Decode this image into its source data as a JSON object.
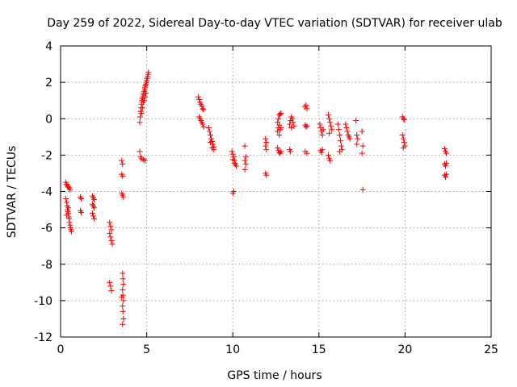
{
  "chart_data": {
    "type": "scatter",
    "title": "Day 259 of 2022, Sidereal Day-to-day VTEC variation (SDTVAR) for receiver ulab",
    "xlabel": "GPS time / hours",
    "ylabel": "SDTVAR / TECUs",
    "xlim": [
      0,
      25
    ],
    "ylim": [
      -12,
      4
    ],
    "xticks": [
      0,
      5,
      10,
      15,
      20,
      25
    ],
    "yticks": [
      -12,
      -10,
      -8,
      -6,
      -4,
      -2,
      0,
      2,
      4
    ],
    "grid": true,
    "marker": "+",
    "marker_color": "#ff0000",
    "series": [
      {
        "name": "SDTVAR",
        "points": [
          [
            0.3,
            -3.5
          ],
          [
            0.35,
            -3.6
          ],
          [
            0.4,
            -3.7
          ],
          [
            0.45,
            -3.75
          ],
          [
            0.5,
            -3.8
          ],
          [
            0.55,
            -3.9
          ],
          [
            0.3,
            -4.4
          ],
          [
            0.35,
            -4.6
          ],
          [
            0.38,
            -4.8
          ],
          [
            0.4,
            -5.0
          ],
          [
            0.42,
            -5.1
          ],
          [
            0.45,
            -5.2
          ],
          [
            0.48,
            -5.4
          ],
          [
            0.5,
            -5.5
          ],
          [
            0.52,
            -5.7
          ],
          [
            0.55,
            -5.85
          ],
          [
            0.58,
            -6.0
          ],
          [
            0.6,
            -6.1
          ],
          [
            0.63,
            -6.2
          ],
          [
            0.35,
            -5.3
          ],
          [
            0.45,
            -4.9
          ],
          [
            1.15,
            -4.3
          ],
          [
            1.2,
            -4.4
          ],
          [
            1.15,
            -5.05
          ],
          [
            1.2,
            -5.15
          ],
          [
            1.85,
            -4.25
          ],
          [
            1.9,
            -4.35
          ],
          [
            1.95,
            -4.45
          ],
          [
            1.85,
            -4.7
          ],
          [
            1.9,
            -4.8
          ],
          [
            1.95,
            -4.9
          ],
          [
            1.85,
            -5.2
          ],
          [
            1.9,
            -5.35
          ],
          [
            1.95,
            -5.5
          ],
          [
            2.85,
            -5.7
          ],
          [
            2.9,
            -5.9
          ],
          [
            2.95,
            -6.1
          ],
          [
            2.85,
            -6.3
          ],
          [
            2.9,
            -6.5
          ],
          [
            2.95,
            -6.7
          ],
          [
            3.0,
            -6.9
          ],
          [
            2.85,
            -9.0
          ],
          [
            2.9,
            -9.2
          ],
          [
            2.95,
            -9.45
          ],
          [
            3.55,
            -2.3
          ],
          [
            3.6,
            -2.5
          ],
          [
            3.55,
            -3.05
          ],
          [
            3.6,
            -3.15
          ],
          [
            3.55,
            -4.1
          ],
          [
            3.6,
            -4.2
          ],
          [
            3.65,
            -4.3
          ],
          [
            3.6,
            -8.5
          ],
          [
            3.62,
            -8.8
          ],
          [
            3.65,
            -9.1
          ],
          [
            3.6,
            -9.4
          ],
          [
            3.62,
            -9.7
          ],
          [
            3.65,
            -10.0
          ],
          [
            3.6,
            -10.3
          ],
          [
            3.62,
            -10.6
          ],
          [
            3.65,
            -11.0
          ],
          [
            3.6,
            -11.3
          ],
          [
            3.55,
            -9.8
          ],
          [
            4.6,
            -1.8
          ],
          [
            4.65,
            -2.1
          ],
          [
            4.7,
            -2.2
          ],
          [
            4.8,
            -2.25
          ],
          [
            4.9,
            -2.3
          ],
          [
            4.6,
            -0.2
          ],
          [
            4.62,
            0.1
          ],
          [
            4.65,
            0.4
          ],
          [
            4.68,
            0.6
          ],
          [
            4.7,
            0.8
          ],
          [
            4.72,
            1.0
          ],
          [
            4.75,
            1.1
          ],
          [
            4.78,
            1.2
          ],
          [
            4.8,
            1.3
          ],
          [
            4.82,
            1.4
          ],
          [
            4.85,
            1.5
          ],
          [
            4.88,
            1.6
          ],
          [
            4.9,
            1.7
          ],
          [
            4.92,
            1.8
          ],
          [
            4.95,
            1.9
          ],
          [
            4.98,
            2.0
          ],
          [
            5.0,
            2.1
          ],
          [
            5.02,
            2.2
          ],
          [
            5.05,
            2.3
          ],
          [
            5.08,
            2.45
          ],
          [
            5.1,
            2.55
          ],
          [
            4.7,
            0.3
          ],
          [
            4.75,
            0.6
          ],
          [
            4.8,
            0.9
          ],
          [
            4.85,
            1.0
          ],
          [
            4.9,
            1.2
          ],
          [
            4.95,
            1.4
          ],
          [
            8.0,
            1.2
          ],
          [
            8.05,
            1.05
          ],
          [
            8.1,
            0.9
          ],
          [
            8.15,
            0.8
          ],
          [
            8.2,
            0.7
          ],
          [
            8.25,
            0.55
          ],
          [
            8.3,
            0.5
          ],
          [
            8.05,
            0.1
          ],
          [
            8.1,
            0.0
          ],
          [
            8.15,
            -0.1
          ],
          [
            8.2,
            -0.2
          ],
          [
            8.25,
            -0.3
          ],
          [
            8.3,
            -0.45
          ],
          [
            8.6,
            -0.5
          ],
          [
            8.65,
            -0.7
          ],
          [
            8.7,
            -0.9
          ],
          [
            8.75,
            -1.1
          ],
          [
            8.8,
            -1.25
          ],
          [
            8.85,
            -1.4
          ],
          [
            8.9,
            -1.55
          ],
          [
            8.7,
            -1.3
          ],
          [
            8.8,
            -1.6
          ],
          [
            8.9,
            -1.7
          ],
          [
            9.95,
            -1.8
          ],
          [
            10.0,
            -1.95
          ],
          [
            10.05,
            -2.1
          ],
          [
            10.1,
            -2.3
          ],
          [
            10.15,
            -2.5
          ],
          [
            10.2,
            -2.6
          ],
          [
            10.0,
            -2.25
          ],
          [
            10.1,
            -2.45
          ],
          [
            10.0,
            -4.1
          ],
          [
            10.05,
            -4.0
          ],
          [
            10.7,
            -1.5
          ],
          [
            10.75,
            -2.1
          ],
          [
            10.7,
            -2.3
          ],
          [
            10.75,
            -2.5
          ],
          [
            10.7,
            -2.8
          ],
          [
            11.9,
            -1.1
          ],
          [
            11.95,
            -1.3
          ],
          [
            11.9,
            -1.5
          ],
          [
            11.95,
            -1.7
          ],
          [
            11.9,
            -3.0
          ],
          [
            11.95,
            -3.1
          ],
          [
            12.6,
            -0.2
          ],
          [
            12.65,
            0.0
          ],
          [
            12.7,
            0.2
          ],
          [
            12.75,
            0.25
          ],
          [
            12.8,
            0.3
          ],
          [
            12.6,
            -0.7
          ],
          [
            12.65,
            -0.5
          ],
          [
            12.7,
            -0.35
          ],
          [
            12.75,
            -0.6
          ],
          [
            12.8,
            -0.5
          ],
          [
            12.6,
            -1.6
          ],
          [
            12.65,
            -1.75
          ],
          [
            12.7,
            -1.85
          ],
          [
            12.75,
            -1.9
          ],
          [
            12.8,
            -1.8
          ],
          [
            12.7,
            -0.9
          ],
          [
            13.3,
            -0.3
          ],
          [
            13.35,
            -0.1
          ],
          [
            13.4,
            0.1
          ],
          [
            13.45,
            0.0
          ],
          [
            13.5,
            -0.2
          ],
          [
            13.55,
            -0.4
          ],
          [
            13.4,
            -0.5
          ],
          [
            13.3,
            -1.7
          ],
          [
            13.35,
            -1.8
          ],
          [
            14.2,
            0.65
          ],
          [
            14.25,
            0.75
          ],
          [
            14.3,
            0.55
          ],
          [
            14.2,
            -0.35
          ],
          [
            14.25,
            -0.45
          ],
          [
            14.3,
            -0.4
          ],
          [
            14.2,
            -1.8
          ],
          [
            14.3,
            -1.9
          ],
          [
            15.05,
            -0.3
          ],
          [
            15.1,
            -0.5
          ],
          [
            15.15,
            -0.7
          ],
          [
            15.2,
            -0.9
          ],
          [
            15.25,
            -0.6
          ],
          [
            15.1,
            -1.75
          ],
          [
            15.15,
            -1.85
          ],
          [
            15.2,
            -1.7
          ],
          [
            15.55,
            0.2
          ],
          [
            15.6,
            0.0
          ],
          [
            15.65,
            -0.2
          ],
          [
            15.7,
            -0.4
          ],
          [
            15.75,
            -0.6
          ],
          [
            15.6,
            -0.8
          ],
          [
            15.55,
            -2.0
          ],
          [
            15.6,
            -2.2
          ],
          [
            15.65,
            -2.3
          ],
          [
            16.1,
            -0.3
          ],
          [
            16.15,
            -0.6
          ],
          [
            16.2,
            -0.9
          ],
          [
            16.25,
            -1.2
          ],
          [
            16.3,
            -1.5
          ],
          [
            16.35,
            -1.7
          ],
          [
            16.2,
            -1.8
          ],
          [
            16.55,
            -0.3
          ],
          [
            16.6,
            -0.5
          ],
          [
            16.65,
            -0.7
          ],
          [
            16.7,
            -0.9
          ],
          [
            16.75,
            -1.0
          ],
          [
            16.8,
            -1.1
          ],
          [
            17.15,
            -0.1
          ],
          [
            17.2,
            -0.9
          ],
          [
            17.25,
            -1.1
          ],
          [
            17.2,
            -1.4
          ],
          [
            17.5,
            -0.7
          ],
          [
            17.55,
            -1.5
          ],
          [
            17.5,
            -1.9
          ],
          [
            17.55,
            -3.9
          ],
          [
            19.85,
            0.1
          ],
          [
            19.9,
            0.0
          ],
          [
            19.95,
            -0.05
          ],
          [
            19.85,
            -0.9
          ],
          [
            19.9,
            -1.1
          ],
          [
            19.95,
            -1.3
          ],
          [
            20.0,
            -1.5
          ],
          [
            19.9,
            -1.6
          ],
          [
            22.3,
            -1.65
          ],
          [
            22.35,
            -1.8
          ],
          [
            22.4,
            -1.9
          ],
          [
            22.3,
            -2.5
          ],
          [
            22.35,
            -2.6
          ],
          [
            22.4,
            -2.45
          ],
          [
            22.3,
            -3.1
          ],
          [
            22.35,
            -3.2
          ],
          [
            22.4,
            -3.05
          ]
        ]
      }
    ]
  }
}
